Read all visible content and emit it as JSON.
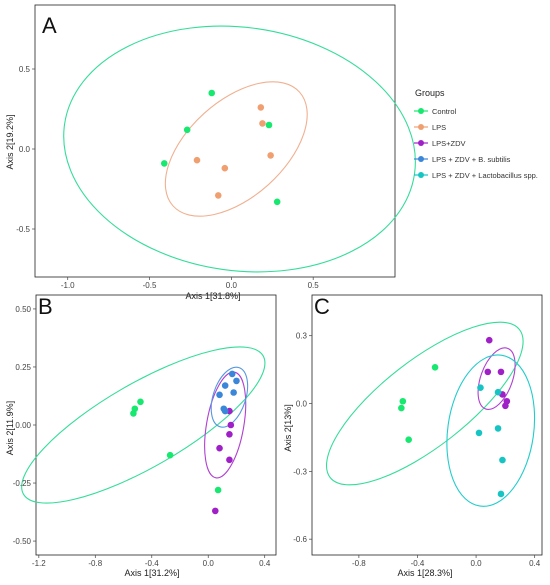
{
  "legend": {
    "title": "Groups",
    "items": [
      {
        "label": "Control",
        "color": "#17e86f"
      },
      {
        "label": "LPS",
        "color": "#f0a070"
      },
      {
        "label": "LPS+ZDV",
        "color": "#a020c8"
      },
      {
        "label": "LPS + ZDV + B. subtilis",
        "color": "#3a86d8"
      },
      {
        "label": "LPS + ZDV + Lactobacillus spp.",
        "color": "#16c4c4"
      }
    ]
  },
  "chart_data": [
    {
      "type": "scatter",
      "panel_label": "A",
      "xlabel": "Axis 1[31.8%]",
      "ylabel": "Axis 2[19.2%]",
      "xlim": [
        -1.2,
        1.0
      ],
      "ylim": [
        -0.8,
        0.9
      ],
      "xticks": [
        -1.0,
        -0.5,
        0.0,
        0.5
      ],
      "xtick_labels": [
        "-1.0",
        "-0.5",
        "0.0",
        "0.5"
      ],
      "yticks": [
        0.5,
        0.0,
        -0.5
      ],
      "ytick_labels": [
        "0.5",
        "0.0",
        "-0.5"
      ],
      "series": [
        {
          "name": "Control",
          "color": "#17e86f",
          "points": [
            [
              -0.12,
              0.35
            ],
            [
              -0.27,
              0.12
            ],
            [
              -0.41,
              -0.09
            ],
            [
              0.23,
              0.15
            ],
            [
              0.28,
              -0.33
            ]
          ]
        },
        {
          "name": "LPS",
          "color": "#f0a070",
          "points": [
            [
              0.18,
              0.26
            ],
            [
              0.19,
              0.16
            ],
            [
              -0.21,
              -0.07
            ],
            [
              -0.04,
              -0.12
            ],
            [
              0.24,
              -0.04
            ],
            [
              -0.08,
              -0.29
            ]
          ]
        }
      ],
      "ellipses": [
        {
          "series": "Control",
          "color": "#33dd99",
          "cx": 0.05,
          "cy": 0.0,
          "rx": 1.08,
          "ry": 0.76,
          "angle": -8
        },
        {
          "series": "LPS",
          "color": "#f0b090",
          "cx": 0.03,
          "cy": 0.0,
          "rx": 0.52,
          "ry": 0.3,
          "angle": 42
        }
      ]
    },
    {
      "type": "scatter",
      "panel_label": "B",
      "xlabel": "Axis 1[31.2%]",
      "ylabel": "Axis 2[11.9%]",
      "xlim": [
        -1.22,
        0.48
      ],
      "ylim": [
        -0.56,
        0.56
      ],
      "xticks": [
        -1.2,
        -0.8,
        -0.4,
        0.0,
        0.4
      ],
      "xtick_labels": [
        "-1.2",
        "-0.8",
        "-0.4",
        "0.0",
        "0.4"
      ],
      "yticks": [
        0.5,
        0.25,
        0.0,
        -0.25,
        -0.5
      ],
      "ytick_labels": [
        "0.50",
        "0.25",
        "0.00",
        "-0.25",
        "-0.50"
      ],
      "series": [
        {
          "name": "Control",
          "color": "#17e86f",
          "points": [
            [
              -0.48,
              0.1
            ],
            [
              -0.52,
              0.07
            ],
            [
              -0.53,
              0.05
            ],
            [
              -0.27,
              -0.13
            ],
            [
              0.07,
              -0.28
            ]
          ]
        },
        {
          "name": "LPS+ZDV",
          "color": "#a020c8",
          "points": [
            [
              0.15,
              0.06
            ],
            [
              0.16,
              0.0
            ],
            [
              0.15,
              -0.04
            ],
            [
              0.08,
              -0.1
            ],
            [
              0.15,
              -0.15
            ],
            [
              0.05,
              -0.37
            ]
          ]
        },
        {
          "name": "LPS + ZDV + B. subtilis",
          "color": "#3a86d8",
          "points": [
            [
              0.17,
              0.22
            ],
            [
              0.2,
              0.19
            ],
            [
              0.12,
              0.17
            ],
            [
              0.18,
              0.14
            ],
            [
              0.08,
              0.13
            ],
            [
              0.11,
              0.07
            ],
            [
              0.12,
              0.06
            ]
          ]
        }
      ],
      "ellipses": [
        {
          "series": "Control",
          "color": "#33dd99",
          "cx": -0.46,
          "cy": 0.0,
          "rx": 0.98,
          "ry": 0.18,
          "angle": 30
        },
        {
          "series": "LPS+ZDV",
          "color": "#b040d0",
          "cx": 0.12,
          "cy": 0.0,
          "rx": 0.38,
          "ry": 0.08,
          "angle": 80
        },
        {
          "series": "LPS + ZDV + B. subtilis",
          "color": "#5599e0",
          "cx": 0.15,
          "cy": 0.12,
          "rx": 0.22,
          "ry": 0.07,
          "angle": 72
        }
      ]
    },
    {
      "type": "scatter",
      "panel_label": "C",
      "xlabel": "Axis 1[28.3%]",
      "ylabel": "Axis 2[13%]",
      "xlim": [
        -1.12,
        0.45
      ],
      "ylim": [
        -0.67,
        0.48
      ],
      "xticks": [
        -0.8,
        -0.4,
        0.0,
        0.4
      ],
      "xtick_labels": [
        "-0.8",
        "-0.4",
        "0.0",
        "0.4"
      ],
      "yticks": [
        0.3,
        0.0,
        -0.3,
        -0.6
      ],
      "ytick_labels": [
        "0.3",
        "0.0",
        "-0.3",
        "-0.6"
      ],
      "series": [
        {
          "name": "Control",
          "color": "#17e86f",
          "points": [
            [
              -0.28,
              0.16
            ],
            [
              -0.5,
              0.01
            ],
            [
              -0.51,
              -0.02
            ],
            [
              -0.46,
              -0.16
            ]
          ]
        },
        {
          "name": "LPS+ZDV",
          "color": "#a020c8",
          "points": [
            [
              0.09,
              0.28
            ],
            [
              0.08,
              0.14
            ],
            [
              0.17,
              0.14
            ],
            [
              0.18,
              0.04
            ],
            [
              0.21,
              0.01
            ],
            [
              0.2,
              -0.01
            ]
          ]
        },
        {
          "name": "LPS + ZDV + Lactobacillus spp.",
          "color": "#16c4c4",
          "points": [
            [
              0.03,
              0.07
            ],
            [
              0.15,
              0.05
            ],
            [
              0.02,
              -0.13
            ],
            [
              0.15,
              -0.11
            ],
            [
              0.18,
              -0.25
            ],
            [
              0.17,
              -0.4
            ]
          ]
        }
      ],
      "ellipses": [
        {
          "series": "Control",
          "color": "#33dd99",
          "cx": -0.35,
          "cy": 0.0,
          "rx": 0.82,
          "ry": 0.19,
          "angle": 38
        },
        {
          "series": "LPS+ZDV",
          "color": "#b040d0",
          "cx": 0.14,
          "cy": 0.11,
          "rx": 0.22,
          "ry": 0.07,
          "angle": 70
        },
        {
          "series": "LPS + ZDV + Lactobacillus spp.",
          "color": "#22cccc",
          "cx": 0.1,
          "cy": -0.12,
          "rx": 0.52,
          "ry": 0.19,
          "angle": 82
        }
      ]
    }
  ]
}
